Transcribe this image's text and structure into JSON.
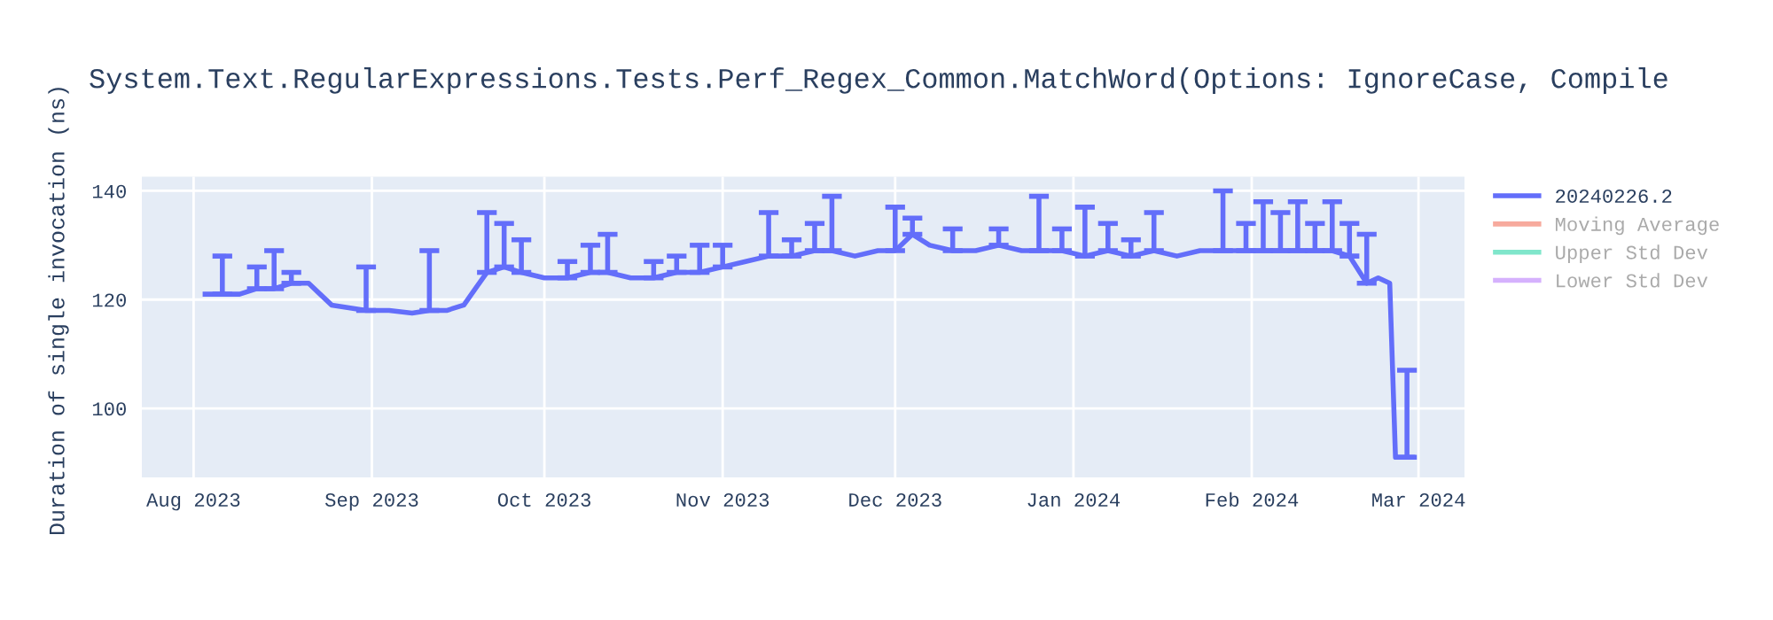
{
  "chart_data": {
    "type": "line",
    "title": "System.Text.RegularExpressions.Tests.Perf_Regex_Common.MatchWord(Options: IgnoreCase, Compile",
    "ylabel": "Duration of single invocation (ns)",
    "x": [
      "2023-08-03",
      "2023-08-06",
      "2023-08-09",
      "2023-08-12",
      "2023-08-15",
      "2023-08-18",
      "2023-08-21",
      "2023-08-23",
      "2023-08-25",
      "2023-08-28",
      "2023-08-31",
      "2023-09-04",
      "2023-09-08",
      "2023-09-11",
      "2023-09-14",
      "2023-09-17",
      "2023-09-19",
      "2023-09-21",
      "2023-09-24",
      "2023-09-27",
      "2023-10-01",
      "2023-10-05",
      "2023-10-09",
      "2023-10-12",
      "2023-10-16",
      "2023-10-20",
      "2023-10-24",
      "2023-10-28",
      "2023-11-01",
      "2023-11-05",
      "2023-11-09",
      "2023-11-13",
      "2023-11-17",
      "2023-11-20",
      "2023-11-24",
      "2023-11-28",
      "2023-12-01",
      "2023-12-04",
      "2023-12-07",
      "2023-12-11",
      "2023-12-15",
      "2023-12-19",
      "2023-12-23",
      "2023-12-26",
      "2023-12-30",
      "2024-01-03",
      "2024-01-07",
      "2024-01-11",
      "2024-01-15",
      "2024-01-19",
      "2024-01-23",
      "2024-01-27",
      "2024-01-31",
      "2024-02-03",
      "2024-02-06",
      "2024-02-09",
      "2024-02-12",
      "2024-02-15",
      "2024-02-18",
      "2024-02-21",
      "2024-02-23",
      "2024-02-25",
      "2024-02-26",
      "2024-02-28",
      "2024-02-29"
    ],
    "series": [
      {
        "name": "20240226.2",
        "color": "#636efa",
        "values": [
          121,
          121,
          121,
          122,
          122,
          123,
          123,
          121,
          119,
          118.5,
          118,
          118,
          117.5,
          118,
          118,
          119,
          122,
          125,
          126,
          125,
          124,
          124,
          125,
          125,
          124,
          124,
          125,
          125,
          126,
          127,
          128,
          128,
          129,
          129,
          128,
          129,
          129,
          132,
          130,
          129,
          129,
          130,
          129,
          129,
          129,
          128,
          129,
          128,
          129,
          128,
          129,
          129,
          129,
          129,
          129,
          129,
          129,
          129,
          128,
          123,
          124,
          123,
          91,
          91,
          91
        ],
        "errors": [
          null,
          [
            121,
            128
          ],
          null,
          [
            122,
            126
          ],
          [
            122,
            129
          ],
          [
            123,
            125
          ],
          null,
          null,
          null,
          null,
          [
            118,
            126
          ],
          null,
          null,
          [
            118,
            129
          ],
          null,
          null,
          null,
          [
            125,
            136
          ],
          [
            126,
            134
          ],
          [
            125,
            131
          ],
          null,
          [
            124,
            127
          ],
          [
            125,
            130
          ],
          [
            125,
            132
          ],
          null,
          [
            124,
            127
          ],
          [
            125,
            128
          ],
          [
            125,
            130
          ],
          [
            126,
            130
          ],
          null,
          [
            128,
            136
          ],
          [
            128,
            131
          ],
          [
            129,
            134
          ],
          [
            129,
            139
          ],
          null,
          null,
          [
            129,
            137
          ],
          [
            132,
            135
          ],
          null,
          [
            129,
            133
          ],
          null,
          [
            130,
            133
          ],
          null,
          [
            129,
            139
          ],
          [
            129,
            133
          ],
          [
            128,
            137
          ],
          [
            129,
            134
          ],
          [
            128,
            131
          ],
          [
            129,
            136
          ],
          null,
          null,
          [
            129,
            140
          ],
          [
            129,
            134
          ],
          [
            129,
            138
          ],
          [
            129,
            136
          ],
          [
            129,
            138
          ],
          [
            129,
            134
          ],
          [
            129,
            138
          ],
          [
            128,
            134
          ],
          [
            123,
            132
          ],
          null,
          null,
          null,
          [
            91,
            107
          ],
          null
        ]
      },
      {
        "name": "Moving Average",
        "color": "#f7aa9d",
        "values": [
          null,
          null,
          null,
          null,
          null,
          null,
          null,
          null,
          null,
          null,
          null,
          null,
          null,
          null,
          null,
          null,
          null,
          null,
          null,
          null,
          null,
          null,
          null,
          null,
          null,
          null,
          null,
          null,
          null,
          null,
          null,
          null,
          null,
          null,
          null,
          null,
          null,
          null,
          null,
          null,
          null,
          null,
          null,
          null,
          null,
          null,
          null,
          null,
          null,
          null,
          null,
          null,
          null,
          null,
          null,
          null,
          null,
          null,
          null,
          null,
          null,
          null,
          null,
          null,
          null
        ]
      },
      {
        "name": "Upper Std Dev",
        "color": "#80e6cb",
        "values": [
          null,
          null,
          null,
          null,
          null,
          null,
          null,
          null,
          null,
          null,
          null,
          null,
          null,
          null,
          null,
          null,
          null,
          null,
          null,
          null,
          null,
          null,
          null,
          null,
          null,
          null,
          null,
          null,
          null,
          null,
          null,
          null,
          null,
          null,
          null,
          null,
          null,
          null,
          null,
          null,
          null,
          null,
          null,
          null,
          null,
          null,
          null,
          null,
          null,
          null,
          null,
          null,
          null,
          null,
          null,
          null,
          null,
          null,
          null,
          null,
          null,
          null,
          null,
          null,
          null
        ]
      },
      {
        "name": "Lower Std Dev",
        "color": "#d5b1fd",
        "values": [
          null,
          null,
          null,
          null,
          null,
          null,
          null,
          null,
          null,
          null,
          null,
          null,
          null,
          null,
          null,
          null,
          null,
          null,
          null,
          null,
          null,
          null,
          null,
          null,
          null,
          null,
          null,
          null,
          null,
          null,
          null,
          null,
          null,
          null,
          null,
          null,
          null,
          null,
          null,
          null,
          null,
          null,
          null,
          null,
          null,
          null,
          null,
          null,
          null,
          null,
          null,
          null,
          null,
          null,
          null,
          null,
          null,
          null,
          null,
          null,
          null,
          null,
          null,
          null,
          null
        ]
      }
    ],
    "xlim": [
      "2023-07-23",
      "2024-03-09"
    ],
    "xticks": [
      {
        "value": "2023-08-01",
        "label": "Aug 2023"
      },
      {
        "value": "2023-09-01",
        "label": "Sep 2023"
      },
      {
        "value": "2023-10-01",
        "label": "Oct 2023"
      },
      {
        "value": "2023-11-01",
        "label": "Nov 2023"
      },
      {
        "value": "2023-12-01",
        "label": "Dec 2023"
      },
      {
        "value": "2024-01-01",
        "label": "Jan 2024"
      },
      {
        "value": "2024-02-01",
        "label": "Feb 2024"
      },
      {
        "value": "2024-03-01",
        "label": "Mar 2024"
      }
    ],
    "ylim": [
      87.3,
      142.6
    ],
    "yticks": [
      100,
      120,
      140
    ],
    "grid": true,
    "legend": "top right",
    "marker": "none",
    "line_style": "solid"
  }
}
